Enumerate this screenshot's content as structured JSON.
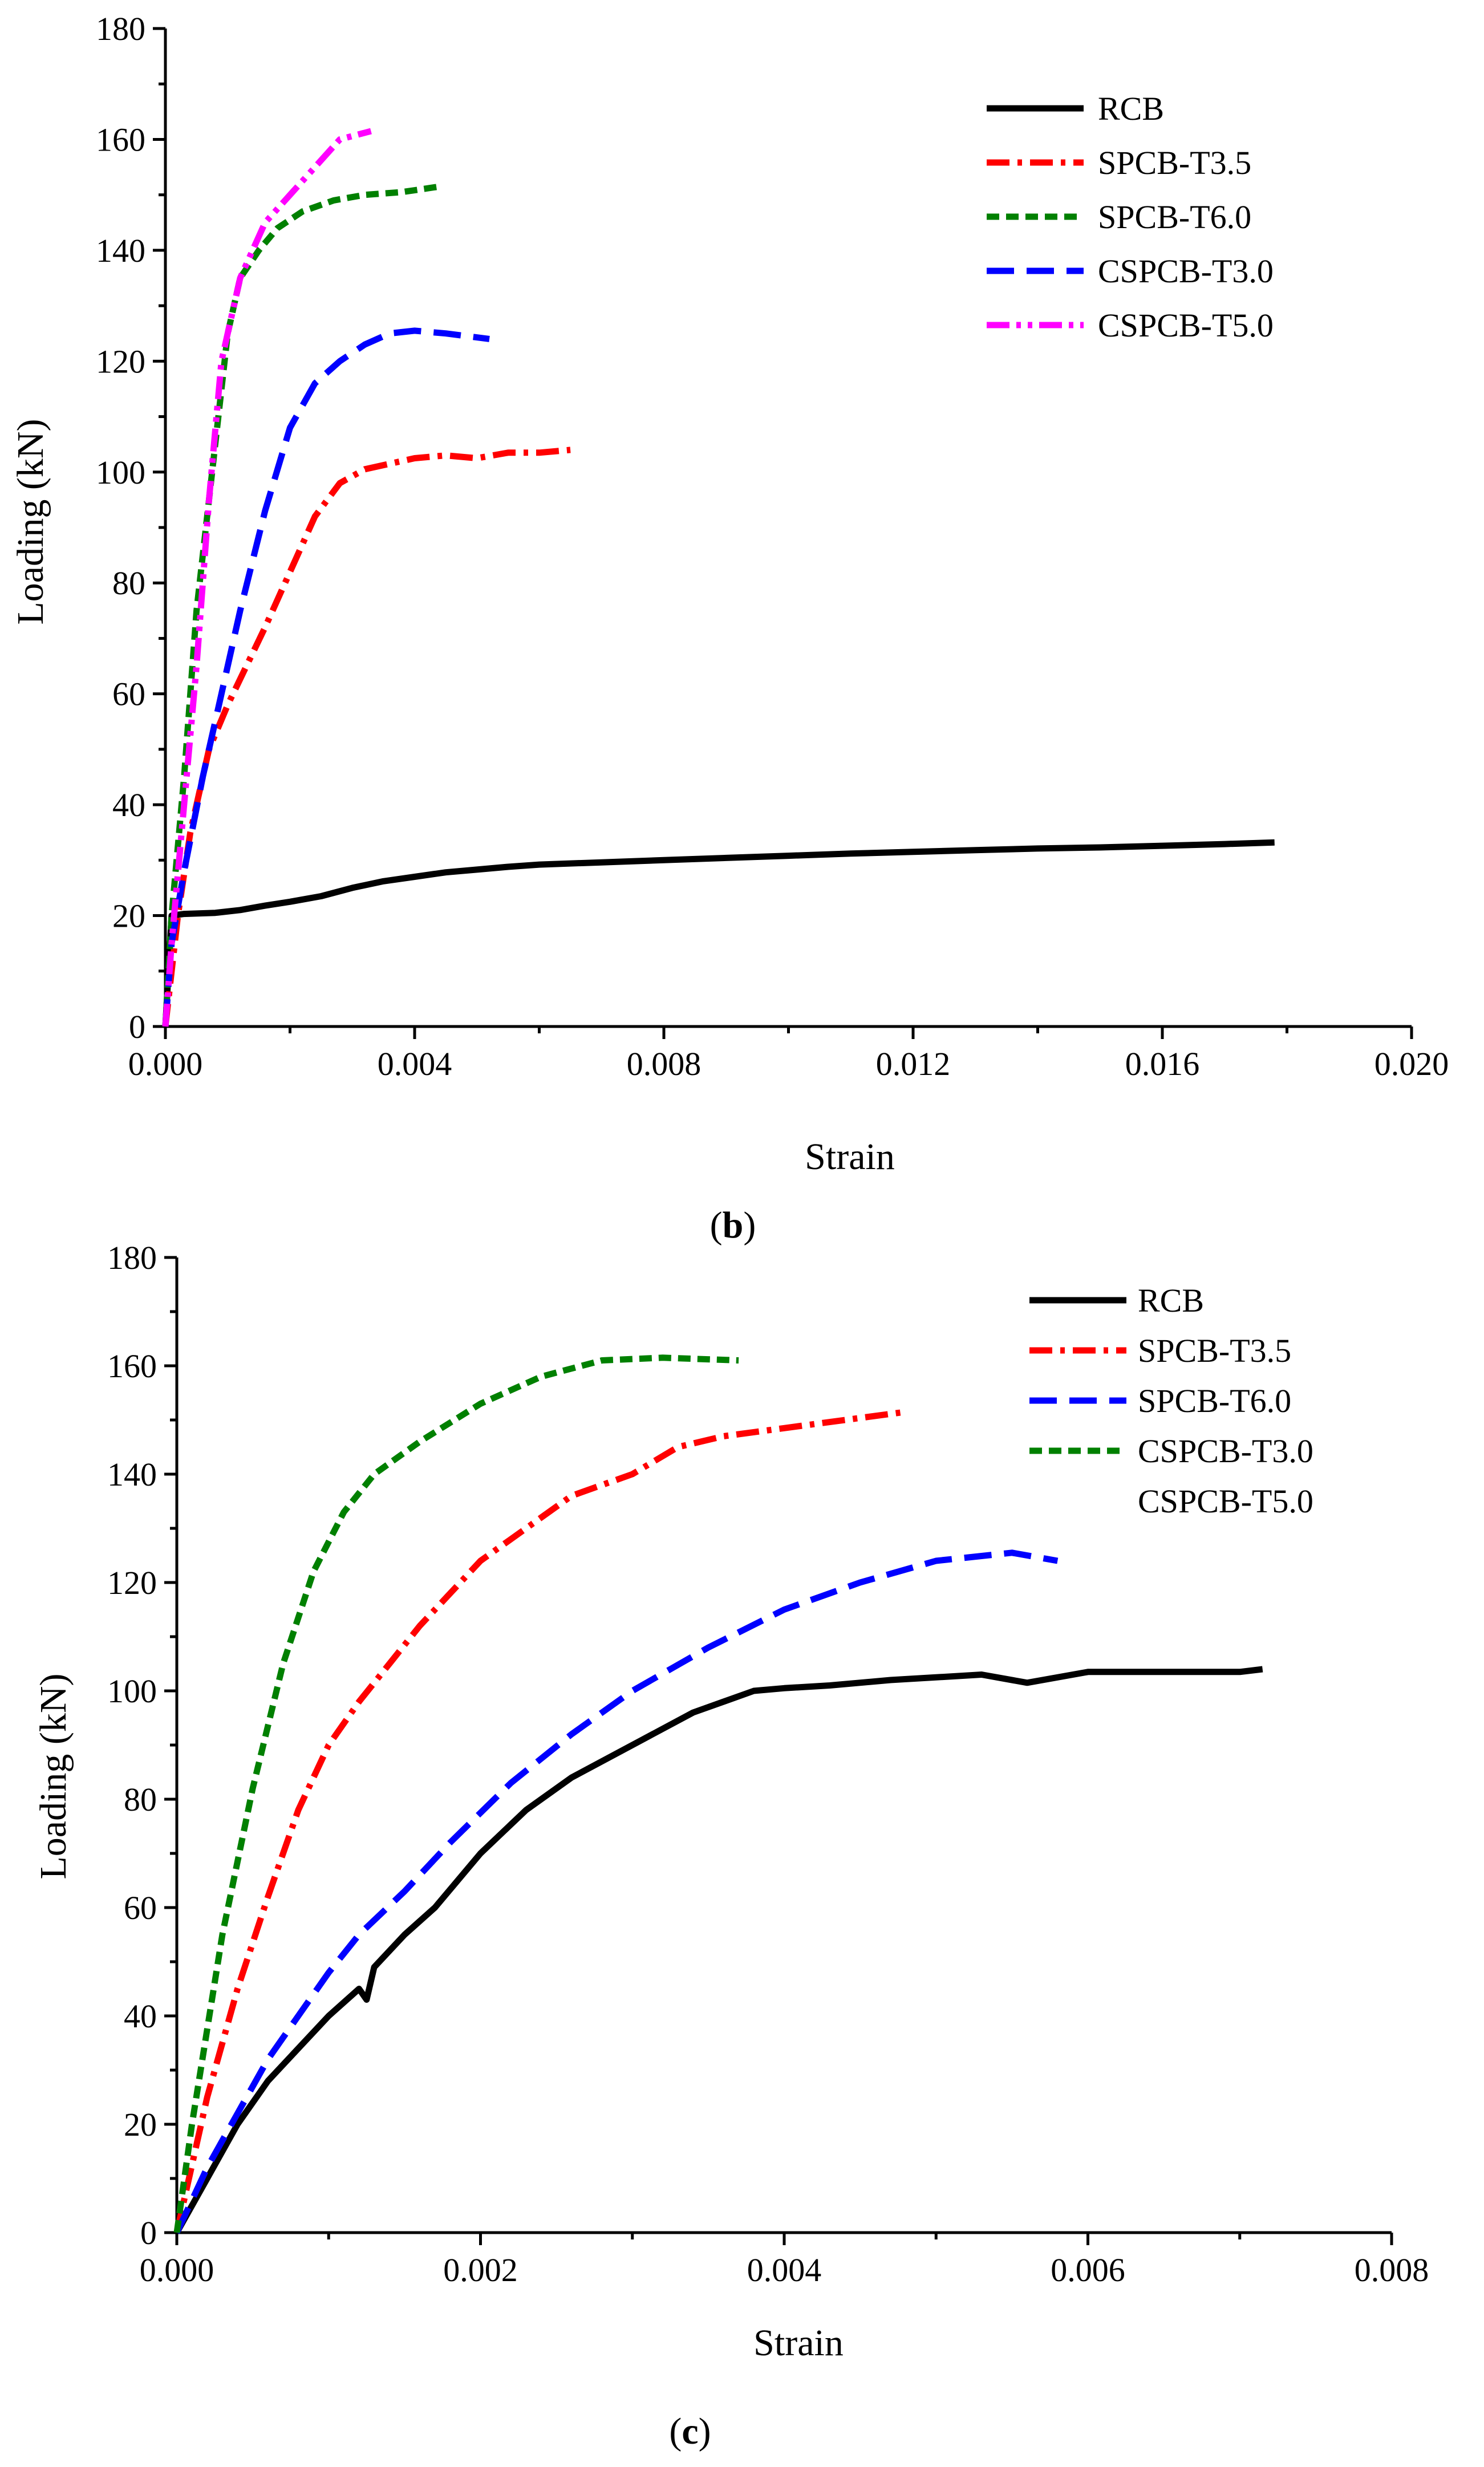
{
  "chart_data": [
    {
      "panel": "b",
      "type": "line",
      "panel_label_prefix": "(",
      "panel_label_letter": "b",
      "panel_label_suffix": ")",
      "xlabel": "Strain",
      "ylabel": "Loading (kN)",
      "xlim": [
        0,
        0.02
      ],
      "ylim": [
        0,
        180
      ],
      "xticks": [
        "0.000",
        "0.004",
        "0.008",
        "0.012",
        "0.016",
        "0.020"
      ],
      "yticks": [
        "0",
        "20",
        "40",
        "60",
        "80",
        "100",
        "120",
        "140",
        "160",
        "180"
      ],
      "legend_position": "top-right",
      "series": [
        {
          "name": "RCB",
          "color": "#000000",
          "dash": "solid",
          "x": [
            0,
            0.0001,
            0.0003,
            0.0008,
            0.0012,
            0.0016,
            0.002,
            0.0025,
            0.003,
            0.0035,
            0.004,
            0.0045,
            0.005,
            0.0055,
            0.006,
            0.007,
            0.008,
            0.009,
            0.01,
            0.011,
            0.012,
            0.013,
            0.014,
            0.015,
            0.016,
            0.017,
            0.0178
          ],
          "y": [
            0,
            20,
            20.3,
            20.5,
            21,
            21.8,
            22.5,
            23.5,
            25,
            26.2,
            27,
            27.8,
            28.3,
            28.8,
            29.2,
            29.6,
            30.0,
            30.4,
            30.8,
            31.2,
            31.5,
            31.8,
            32.1,
            32.3,
            32.6,
            32.9,
            33.2
          ]
        },
        {
          "name": "SPCB-T3.5",
          "color": "#ff0000",
          "dash": "dashdot",
          "x": [
            0,
            0.0002,
            0.0004,
            0.0007,
            0.001,
            0.0013,
            0.0016,
            0.002,
            0.0024,
            0.0028,
            0.0032,
            0.0036,
            0.004,
            0.0045,
            0.005,
            0.0055,
            0.006,
            0.0065
          ],
          "y": [
            0,
            20,
            35,
            50,
            58,
            65,
            72,
            82,
            92,
            98,
            100.5,
            101.5,
            102.5,
            103,
            102.5,
            103.5,
            103.5,
            104
          ]
        },
        {
          "name": "SPCB-T6.0",
          "color": "#008000",
          "dash": "dash",
          "x": [
            0,
            0.0001,
            0.0003,
            0.0005,
            0.0008,
            0.001,
            0.0012,
            0.0015,
            0.0018,
            0.0022,
            0.0027,
            0.0032,
            0.0038,
            0.0044
          ],
          "y": [
            0,
            20,
            45,
            75,
            105,
            125,
            135,
            140,
            144,
            147,
            149,
            150,
            150.5,
            151.5
          ]
        },
        {
          "name": "CSPCB-T3.0",
          "color": "#0000ff",
          "dash": "longdash",
          "x": [
            0,
            0.0001,
            0.0003,
            0.0006,
            0.0009,
            0.0012,
            0.0016,
            0.002,
            0.0024,
            0.0028,
            0.0032,
            0.0036,
            0.004,
            0.0045,
            0.0052
          ],
          "y": [
            0,
            15,
            28,
            45,
            60,
            75,
            93,
            108,
            116,
            120,
            123,
            125,
            125.5,
            125,
            124
          ]
        },
        {
          "name": "CSPCB-T5.0",
          "color": "#ff00ff",
          "dash": "dashdotdot",
          "x": [
            0,
            0.0001,
            0.0003,
            0.0005,
            0.0007,
            0.0009,
            0.0012,
            0.0016,
            0.002,
            0.0024,
            0.0028,
            0.0033
          ],
          "y": [
            0,
            15,
            40,
            65,
            95,
            120,
            135,
            145,
            150,
            155,
            160,
            161.5
          ]
        }
      ]
    },
    {
      "panel": "c",
      "type": "line",
      "panel_label_prefix": "(",
      "panel_label_letter": "c",
      "panel_label_suffix": ")",
      "xlabel": "Strain",
      "ylabel": "Loading (kN)",
      "xlim": [
        0,
        0.008
      ],
      "ylim": [
        0,
        180
      ],
      "xticks": [
        "0.000",
        "0.002",
        "0.004",
        "0.006",
        "0.008"
      ],
      "yticks": [
        "0",
        "20",
        "40",
        "60",
        "80",
        "100",
        "120",
        "140",
        "160",
        "180"
      ],
      "legend_position": "top-right",
      "legend_entries": [
        "RCB",
        "SPCB-T3.5",
        "SPCB-T6.0",
        "CSPCB-T3.0",
        "CSPCB-T5.0"
      ],
      "series": [
        {
          "name": "RCB",
          "color": "#000000",
          "dash": "solid",
          "x": [
            0,
            0.0002,
            0.0004,
            0.0006,
            0.0008,
            0.001,
            0.0012,
            0.00125,
            0.0013,
            0.0015,
            0.0017,
            0.002,
            0.0023,
            0.0026,
            0.003,
            0.0034,
            0.0038,
            0.004,
            0.0043,
            0.0047,
            0.005,
            0.0053,
            0.0056,
            0.006,
            0.0065,
            0.007,
            0.00715
          ],
          "y": [
            0,
            10,
            20,
            28,
            34,
            40,
            45,
            43,
            49,
            55,
            60,
            70,
            78,
            84,
            90,
            96,
            100,
            100.5,
            101,
            102,
            102.5,
            103,
            101.5,
            103.5,
            103.5,
            103.5,
            104
          ]
        },
        {
          "name": "SPCB-T3.5",
          "color": "#ff0000",
          "dash": "dashdot",
          "x": [
            0,
            0.0002,
            0.0004,
            0.0006,
            0.0008,
            0.001,
            0.0012,
            0.0014,
            0.0016,
            0.0018,
            0.002,
            0.0023,
            0.0026,
            0.003,
            0.0033,
            0.0036,
            0.004,
            0.0044,
            0.0048
          ],
          "y": [
            0,
            25,
            45,
            62,
            78,
            90,
            98,
            105,
            112,
            118,
            124,
            130,
            136,
            140,
            145,
            147,
            148.5,
            150,
            151.5
          ]
        },
        {
          "name": "SPCB-T6.0",
          "color": "#0000ff",
          "dash": "longdash",
          "x": [
            0,
            0.0002,
            0.0004,
            0.0006,
            0.0008,
            0.001,
            0.0012,
            0.0015,
            0.0018,
            0.0022,
            0.0026,
            0.003,
            0.0035,
            0.004,
            0.0045,
            0.005,
            0.0055,
            0.0058
          ],
          "y": [
            0,
            12,
            22,
            32,
            40,
            48,
            55,
            63,
            72,
            83,
            92,
            100,
            108,
            115,
            120,
            124,
            125.5,
            124
          ]
        },
        {
          "name": "CSPCB-T3.0",
          "color": "#008000",
          "dash": "dash",
          "x": [
            0,
            0.0001,
            0.0003,
            0.0005,
            0.0007,
            0.0009,
            0.0011,
            0.0013,
            0.0016,
            0.002,
            0.0024,
            0.0028,
            0.0032,
            0.0037
          ],
          "y": [
            0,
            20,
            55,
            82,
            105,
            122,
            133,
            140,
            146,
            153,
            158,
            161,
            161.5,
            161
          ]
        }
      ]
    }
  ]
}
